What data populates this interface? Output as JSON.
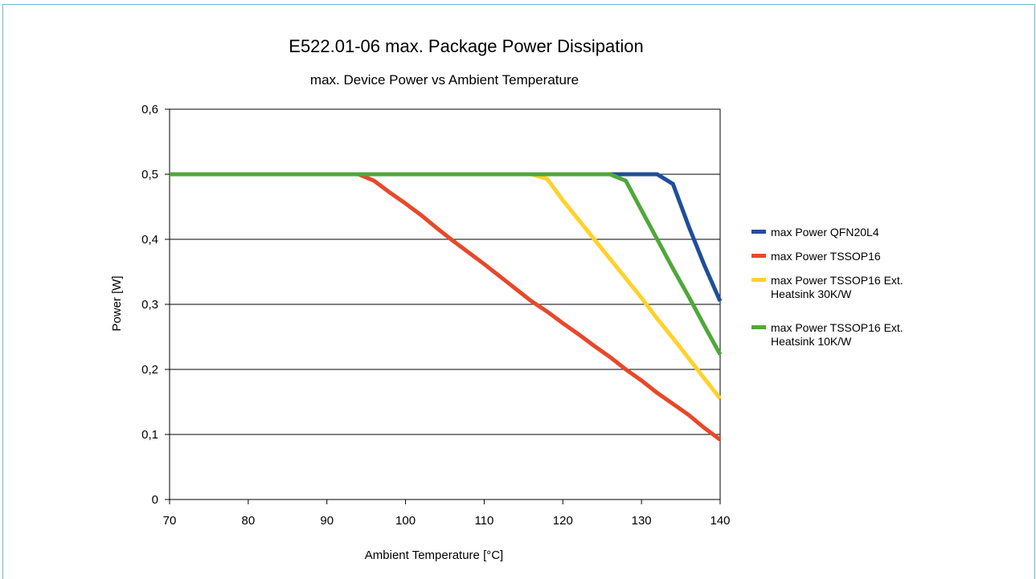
{
  "chart_data": {
    "type": "line",
    "title": "E522.01-06 max. Package Power Dissipation",
    "subtitle": "max. Device Power vs Ambient Temperature",
    "xlabel": "Ambient Temperature [°C]",
    "ylabel": "Power [W]",
    "xlim": [
      70,
      140
    ],
    "ylim": [
      0,
      0.6
    ],
    "x_ticks": [
      70,
      80,
      90,
      100,
      110,
      120,
      130,
      140
    ],
    "x_tick_labels": [
      "70",
      "80",
      "90",
      "100",
      "110",
      "120",
      "130",
      "140"
    ],
    "y_ticks": [
      0,
      0.1,
      0.2,
      0.3,
      0.4,
      0.5,
      0.6
    ],
    "y_tick_labels": [
      "0",
      "0,1",
      "0,2",
      "0,3",
      "0,4",
      "0,5",
      "0,6"
    ],
    "grid": "horizontal",
    "legend_position": "right",
    "series": [
      {
        "name": "max Power QFN20L4",
        "color": "#1f4e9a",
        "x": [
          70,
          132,
          134,
          136,
          138,
          140
        ],
        "y": [
          0.5,
          0.5,
          0.485,
          0.42,
          0.36,
          0.305
        ]
      },
      {
        "name": "max Power TSSOP16",
        "color": "#e8482a",
        "x": [
          70,
          94,
          96,
          98,
          100,
          102,
          104,
          106,
          108,
          110,
          112,
          114,
          116,
          118,
          120,
          122,
          124,
          126,
          128,
          130,
          132,
          134,
          136,
          138,
          140
        ],
        "y": [
          0.5,
          0.5,
          0.49,
          0.472,
          0.455,
          0.437,
          0.417,
          0.398,
          0.38,
          0.362,
          0.343,
          0.324,
          0.305,
          0.289,
          0.271,
          0.254,
          0.236,
          0.219,
          0.2,
          0.183,
          0.164,
          0.147,
          0.13,
          0.11,
          0.092
        ]
      },
      {
        "name": "max Power TSSOP16 Ext. Heatsink 30K/W",
        "color": "#ffd22b",
        "x": [
          70,
          116,
          118,
          120,
          122,
          124,
          126,
          128,
          130,
          132,
          134,
          136,
          138,
          140
        ],
        "y": [
          0.5,
          0.5,
          0.493,
          0.46,
          0.43,
          0.4,
          0.37,
          0.34,
          0.31,
          0.278,
          0.248,
          0.217,
          0.186,
          0.155
        ]
      },
      {
        "name": "max Power TSSOP16 Ext. Heatsink 10K/W",
        "color": "#4ea83a",
        "x": [
          70,
          126,
          128,
          130,
          132,
          134,
          136,
          138,
          140
        ],
        "y": [
          0.5,
          0.5,
          0.49,
          0.445,
          0.4,
          0.355,
          0.312,
          0.267,
          0.223
        ]
      }
    ]
  }
}
